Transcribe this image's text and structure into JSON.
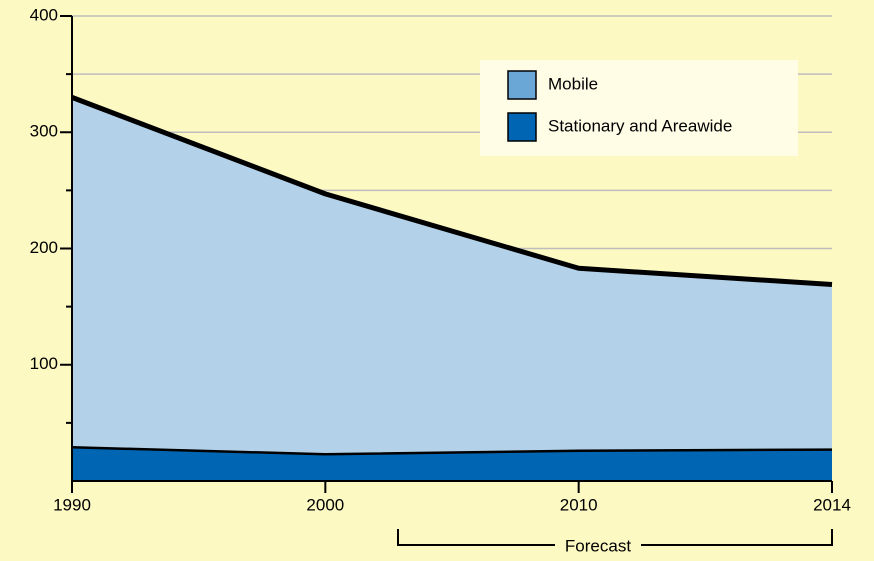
{
  "chart_data": {
    "type": "stacked_area",
    "categories": [
      "1990",
      "2000",
      "2010",
      "2014"
    ],
    "series": [
      {
        "name": "Stationary and Areawide",
        "color": "#0066b3",
        "legend_color": "#0066b3",
        "values": [
          29,
          23,
          26,
          27
        ]
      },
      {
        "name": "Mobile",
        "color": "#b3d1e8",
        "legend_color": "#6aa6d6",
        "values": [
          301,
          224,
          157,
          142
        ]
      }
    ],
    "ylim": [
      0,
      400
    ],
    "yticks": [
      100,
      200,
      300,
      400
    ],
    "yticks_minor": [
      50,
      150,
      250,
      350
    ],
    "grid": true,
    "annotation": "Forecast"
  }
}
